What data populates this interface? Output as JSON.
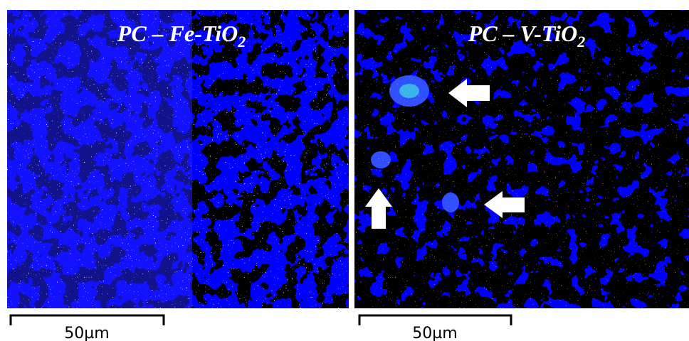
{
  "panels": [
    {
      "title": {
        "main": "PC – Fe-TiO",
        "sub": "2"
      },
      "scale_bar": "50µm"
    },
    {
      "title": {
        "main": "PC – V-TiO",
        "sub": "2"
      },
      "scale_bar": "50µm"
    }
  ]
}
